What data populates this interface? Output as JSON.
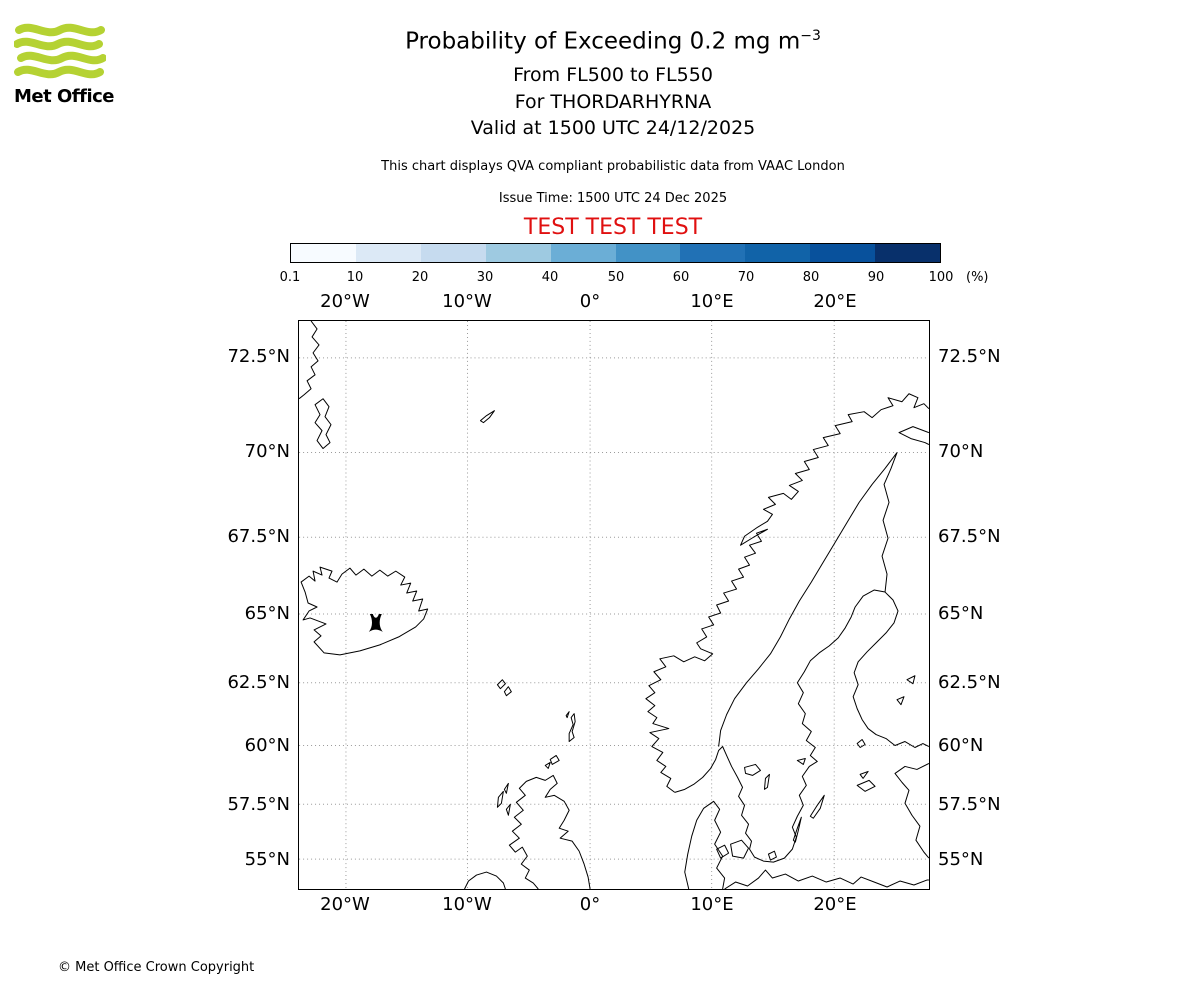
{
  "logo": {
    "text": "Met Office",
    "brand_green": "#b5d233"
  },
  "header": {
    "title_main": "Probability of Exceeding 0.2 mg m",
    "title_sup": "−3",
    "line_flight_levels": "From FL500 to FL550",
    "line_volcano": "For THORDARHYRNA",
    "line_valid": "Valid at 1500 UTC 24/12/2025",
    "note": "This chart displays QVA compliant probabilistic data from VAAC London",
    "issue": "Issue Time: 1500 UTC 24 Dec 2025",
    "test_banner": "TEST TEST TEST",
    "test_color": "#e01010"
  },
  "colorbar": {
    "ticks": [
      "0.1",
      "10",
      "20",
      "30",
      "40",
      "50",
      "60",
      "70",
      "80",
      "90",
      "100"
    ],
    "unit": "(%)"
  },
  "map": {
    "lon_ticks": [
      "20°W",
      "10°W",
      "0°",
      "10°E",
      "20°E"
    ],
    "lat_ticks": [
      "72.5°N",
      "70°N",
      "67.5°N",
      "65°N",
      "62.5°N",
      "60°N",
      "57.5°N",
      "55°N"
    ]
  },
  "footer": {
    "copyright": "© Met Office Crown Copyright"
  },
  "chart_data": {
    "type": "map",
    "title": "Probability of Exceeding 0.2 mg m⁻³",
    "subtitle": [
      "From FL500 to FL550",
      "For THORDARHYRNA",
      "Valid at 1500 UTC 24/12/2025"
    ],
    "source_note": "This chart displays QVA compliant probabilistic data from VAAC London",
    "issue_time": "1500 UTC 24 Dec 2025",
    "status_watermark": "TEST TEST TEST",
    "colorbar": {
      "unit": "%",
      "tick_values": [
        0.1,
        10,
        20,
        30,
        40,
        50,
        60,
        70,
        80,
        90,
        100
      ],
      "colors": [
        "#f7fbff",
        "#dce9f6",
        "#c6dbef",
        "#9ecae1",
        "#6baed6",
        "#4292c6",
        "#2171b5",
        "#1163a8",
        "#08519c",
        "#08306b"
      ]
    },
    "projection": "mercator",
    "map_extent": {
      "lon_min": -23.8,
      "lon_max": 27.8,
      "lat_min": 53.6,
      "lat_max": 73.5
    },
    "lon_gridlines_deg": [
      -20,
      -10,
      0,
      10,
      20
    ],
    "lat_gridlines_deg": [
      55,
      57.5,
      60,
      62.5,
      65,
      67.5,
      70,
      72.5
    ],
    "volcano": {
      "name": "THORDARHYRNA",
      "approx_lat": 64.3,
      "approx_lon": -17.6,
      "marker": "volcano symbol on Iceland"
    },
    "probability_shading": "no shaded probability areas visible on map"
  }
}
